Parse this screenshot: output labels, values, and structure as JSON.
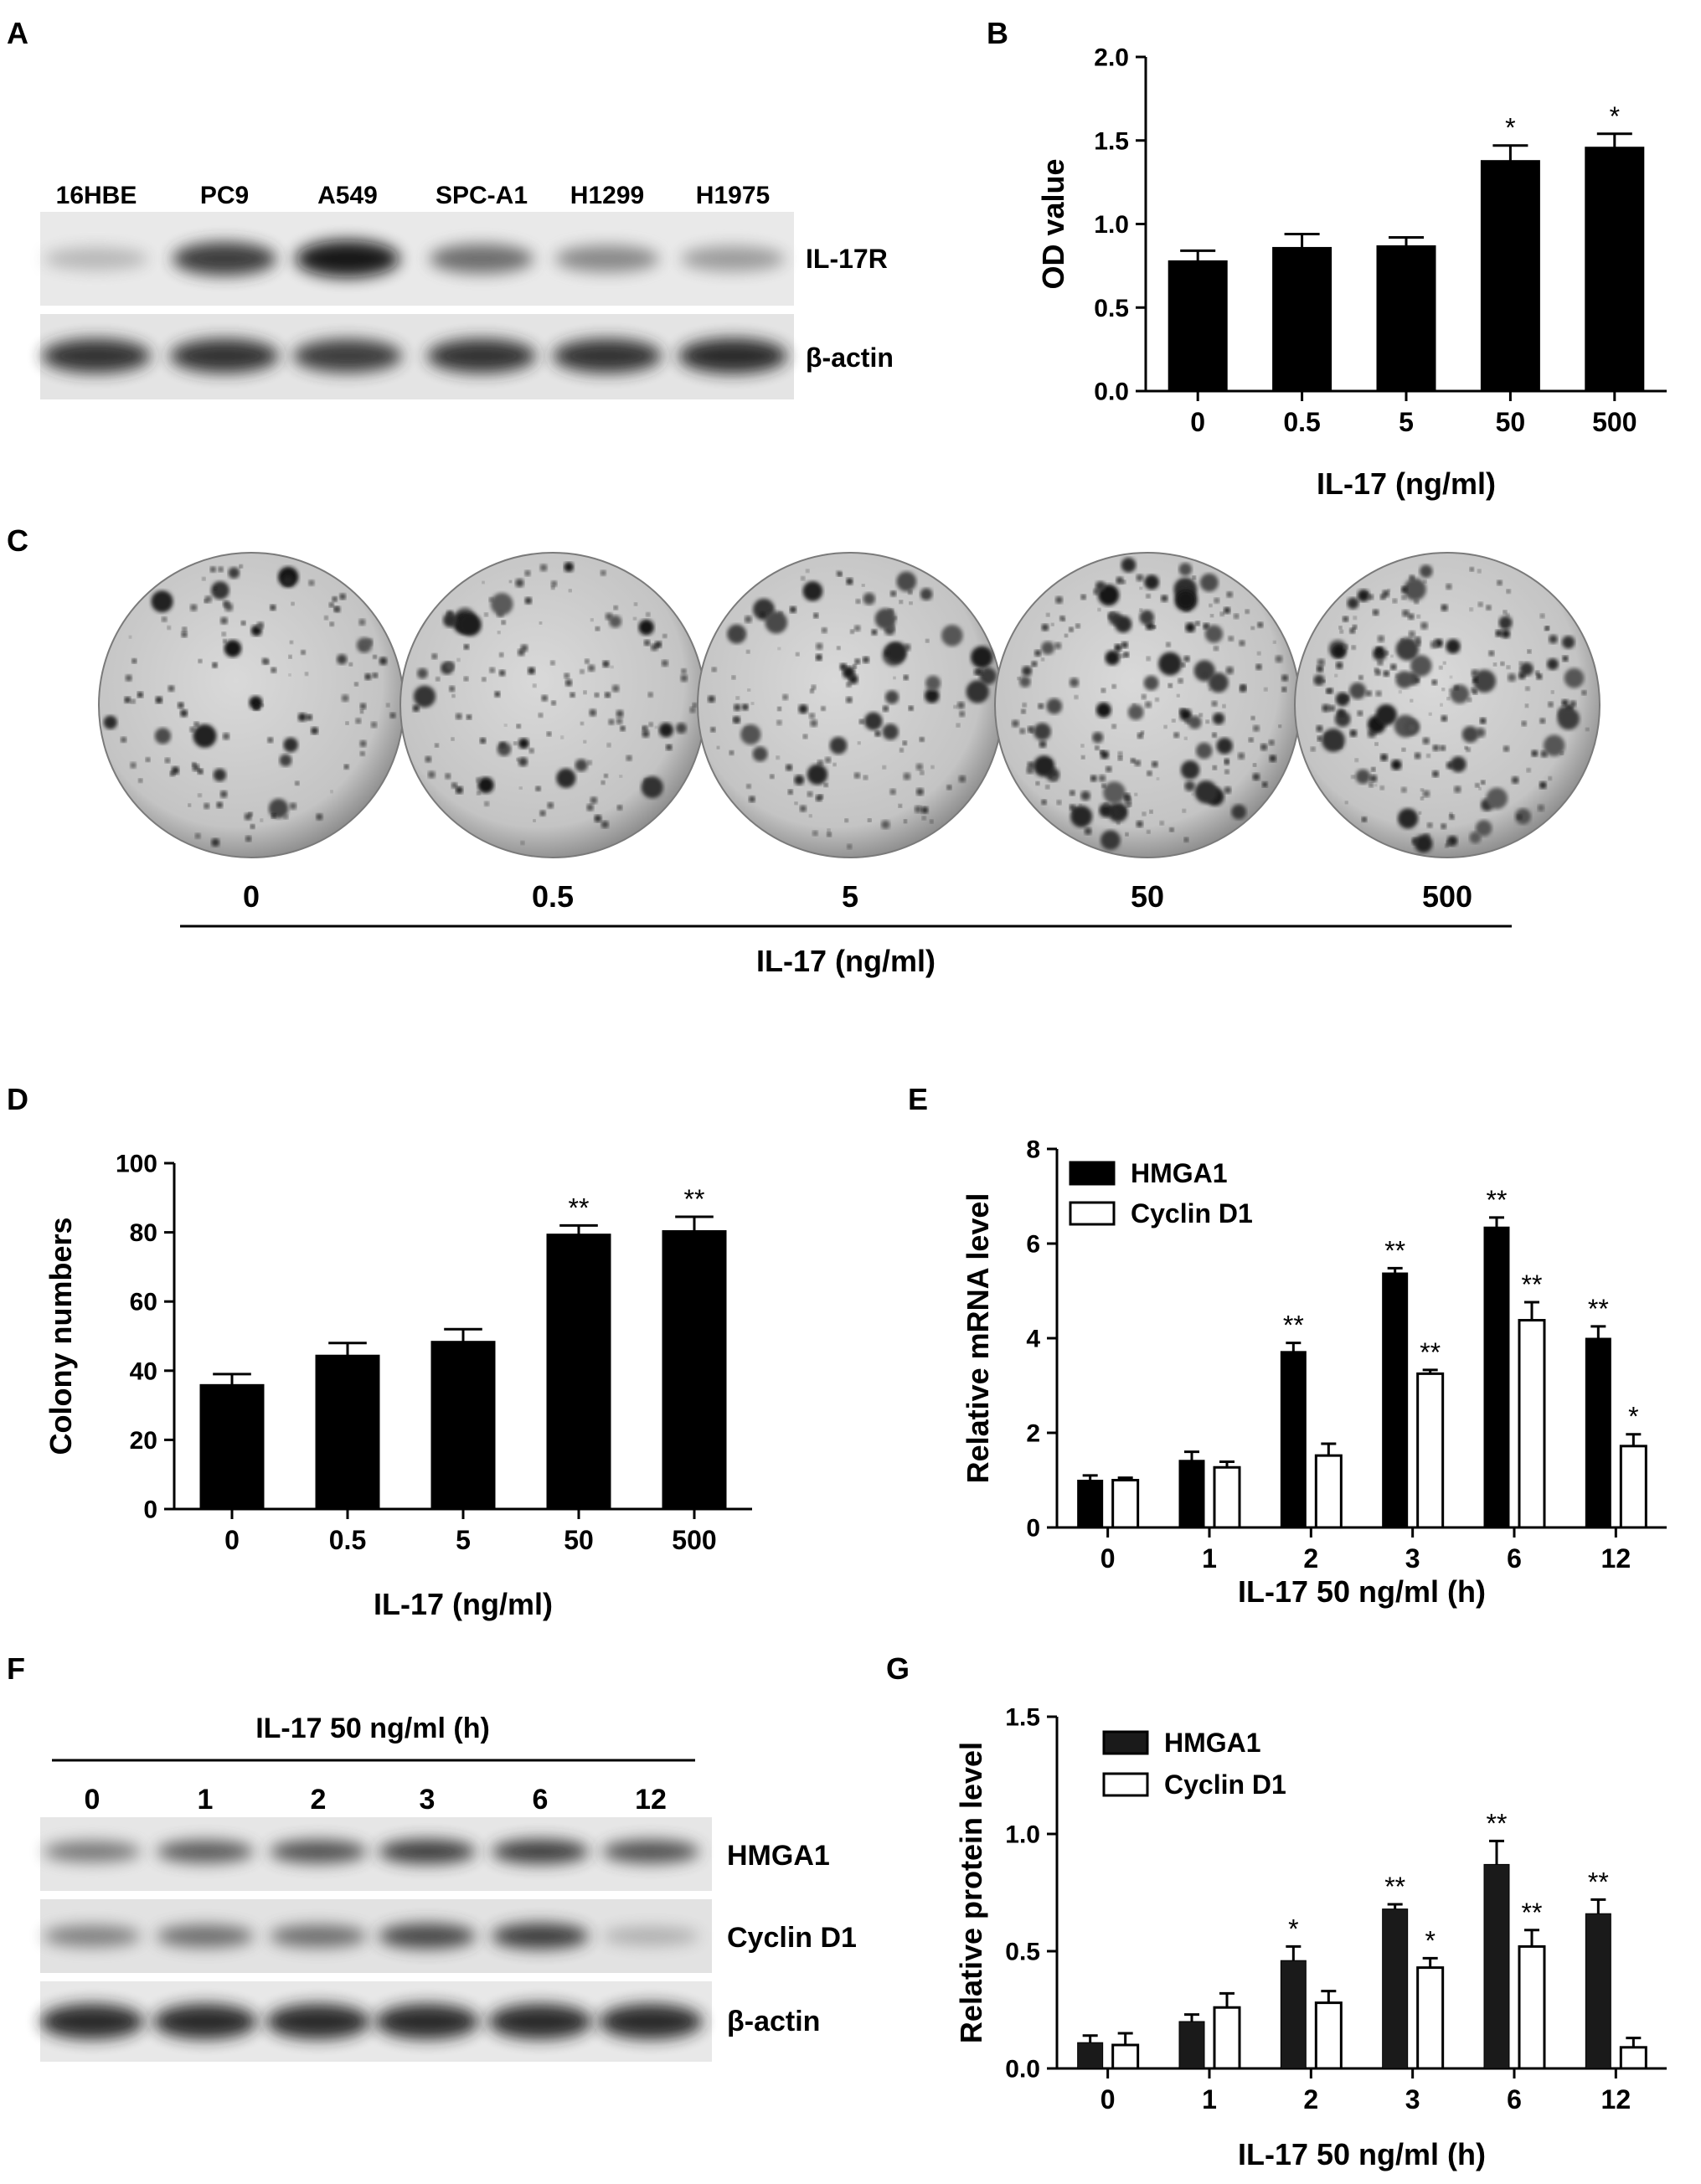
{
  "panels": {
    "A": {
      "letter": "A",
      "lanes": [
        "16HBE",
        "PC9",
        "A549",
        "SPC-A1",
        "H1299",
        "H1975"
      ],
      "bands": [
        "IL-17R",
        "β-actin"
      ],
      "intensity": {
        "IL-17R": [
          0.15,
          0.8,
          1.0,
          0.55,
          0.4,
          0.3
        ],
        "β-actin": [
          0.85,
          0.85,
          0.8,
          0.85,
          0.85,
          0.9
        ]
      }
    },
    "B": {
      "letter": "B"
    },
    "C": {
      "letter": "C",
      "doses": [
        "0",
        "0.5",
        "5",
        "50",
        "500"
      ],
      "colony_density": [
        0.35,
        0.45,
        0.5,
        0.85,
        0.9
      ],
      "xlabel": "IL-17 (ng/ml)"
    },
    "D": {
      "letter": "D"
    },
    "E": {
      "letter": "E"
    },
    "F": {
      "letter": "F",
      "header": "IL-17 50 ng/ml (h)",
      "lanes": [
        "0",
        "1",
        "2",
        "3",
        "6",
        "12"
      ],
      "bands": [
        "HMGA1",
        "Cyclin D1",
        "β-actin"
      ],
      "intensity": {
        "HMGA1": [
          0.5,
          0.65,
          0.7,
          0.8,
          0.8,
          0.7
        ],
        "Cyclin D1": [
          0.45,
          0.55,
          0.55,
          0.75,
          0.8,
          0.2
        ],
        "β-actin": [
          0.9,
          0.9,
          0.9,
          0.9,
          0.9,
          0.9
        ]
      }
    },
    "G": {
      "letter": "G"
    }
  },
  "chart_data": [
    {
      "panel": "B",
      "type": "bar",
      "categories": [
        "0",
        "0.5",
        "5",
        "50",
        "500"
      ],
      "series": [
        {
          "values": [
            0.78,
            0.86,
            0.87,
            1.38,
            1.46
          ],
          "errors": [
            0.06,
            0.08,
            0.05,
            0.09,
            0.08
          ],
          "color": "#000000",
          "hollow": false
        }
      ],
      "annotations": [
        "",
        "",
        "",
        "*",
        "*"
      ],
      "ylabel": "OD value",
      "xlabel": "IL-17 (ng/ml)",
      "ylim": [
        0,
        2.0
      ],
      "yticks": [
        "0.0",
        "0.5",
        "1.0",
        "1.5",
        "2.0"
      ],
      "ytick_values": [
        0,
        0.5,
        1.0,
        1.5,
        2.0
      ]
    },
    {
      "panel": "D",
      "type": "bar",
      "categories": [
        "0",
        "0.5",
        "5",
        "50",
        "500"
      ],
      "series": [
        {
          "values": [
            36,
            44.5,
            48.5,
            79.5,
            80.5
          ],
          "errors": [
            3,
            3.5,
            3.5,
            2.5,
            4
          ],
          "color": "#000000",
          "hollow": false
        }
      ],
      "annotations": [
        "",
        "",
        "",
        "**",
        "**"
      ],
      "ylabel": "Colony numbers",
      "xlabel": "IL-17 (ng/ml)",
      "ylim": [
        0,
        100
      ],
      "yticks": [
        "0",
        "20",
        "40",
        "60",
        "80",
        "100"
      ],
      "ytick_values": [
        0,
        20,
        40,
        60,
        80,
        100
      ]
    },
    {
      "panel": "E",
      "type": "bar",
      "categories": [
        "0",
        "1",
        "2",
        "3",
        "6",
        "12"
      ],
      "series": [
        {
          "name": "HMGA1",
          "values": [
            1.0,
            1.42,
            3.72,
            5.38,
            6.35,
            4.0
          ],
          "errors": [
            0.1,
            0.18,
            0.18,
            0.1,
            0.2,
            0.25
          ],
          "color": "#000000",
          "hollow": false
        },
        {
          "name": "Cyclin D1",
          "values": [
            1.0,
            1.27,
            1.52,
            3.25,
            4.38,
            1.72
          ],
          "errors": [
            0.05,
            0.12,
            0.25,
            0.08,
            0.38,
            0.25
          ],
          "color": "#000000",
          "hollow": true
        }
      ],
      "annotations": [
        [
          "",
          "",
          "**",
          "**",
          "**",
          "**"
        ],
        [
          "",
          "",
          "",
          "**",
          "**",
          "*"
        ]
      ],
      "ylabel": "Relative mRNA level",
      "xlabel": "IL-17 50 ng/ml (h)",
      "ylim": [
        0,
        8
      ],
      "yticks": [
        "0",
        "2",
        "4",
        "6",
        "8"
      ],
      "ytick_values": [
        0,
        2,
        4,
        6,
        8
      ],
      "legend": "top-left"
    },
    {
      "panel": "G",
      "type": "bar",
      "categories": [
        "0",
        "1",
        "2",
        "3",
        "6",
        "12"
      ],
      "series": [
        {
          "name": "HMGA1",
          "values": [
            0.11,
            0.2,
            0.46,
            0.68,
            0.87,
            0.66
          ],
          "errors": [
            0.03,
            0.03,
            0.06,
            0.02,
            0.1,
            0.06
          ],
          "color": "#1a1a1a",
          "hollow": false
        },
        {
          "name": "Cyclin D1",
          "values": [
            0.1,
            0.26,
            0.28,
            0.43,
            0.52,
            0.09
          ],
          "errors": [
            0.05,
            0.06,
            0.05,
            0.04,
            0.07,
            0.04
          ],
          "color": "#000000",
          "hollow": true
        }
      ],
      "annotations": [
        [
          "",
          "",
          "*",
          "**",
          "**",
          "**"
        ],
        [
          "",
          "",
          "",
          "*",
          "**",
          ""
        ]
      ],
      "ylabel": "Relative protein level",
      "xlabel": "IL-17 50 ng/ml (h)",
      "ylim": [
        0,
        1.5
      ],
      "yticks": [
        "0.0",
        "0.5",
        "1.0",
        "1.5"
      ],
      "ytick_values": [
        0,
        0.5,
        1.0,
        1.5
      ],
      "legend": "top-left"
    }
  ]
}
